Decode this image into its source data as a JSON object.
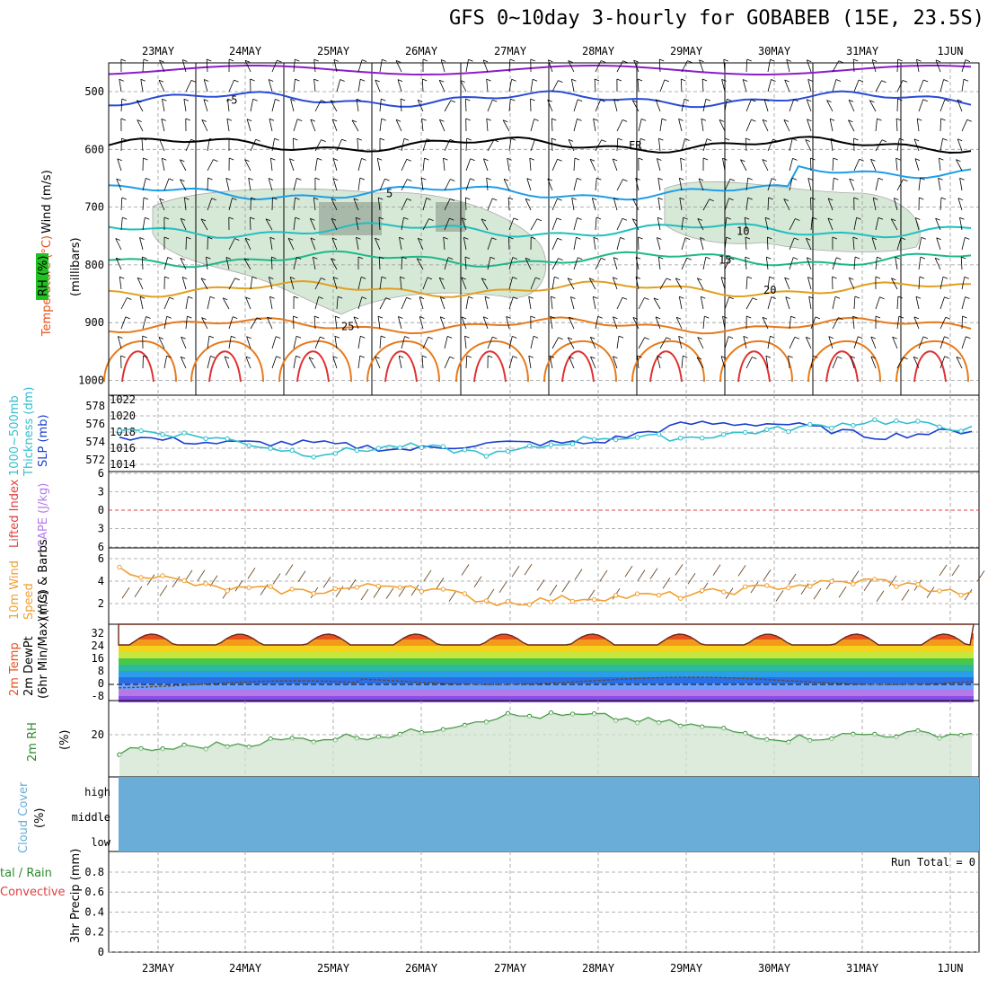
{
  "title": "GFS 0~10day 3-hourly for GOBABEB (15E, 23.5S)",
  "days": [
    "23MAY",
    "24MAY",
    "25MAY",
    "26MAY",
    "27MAY",
    "28MAY",
    "29MAY",
    "30MAY",
    "31MAY",
    "1JUN"
  ],
  "colors": {
    "temp_hot": "#e8501c",
    "temp_mid": "#f39a1c",
    "rh_fill": "#cfe3cf",
    "rh_line": "#2a8a2a",
    "slp": "#1a3fd0",
    "thickness": "#33bfcf",
    "wind10": "#f0a030",
    "cloud": "#6aadd8",
    "cold": "#b57ae8"
  },
  "labels": {
    "upper_ylabel": "(millibars)",
    "upper_wind": "Wind (m/s)",
    "upper_temp": "Temperature (°C)",
    "upper_rh": "RH (%)",
    "slp_label_a": "1000~500mb",
    "slp_label_b": "Thickness (dm)",
    "slp_label_c": "SLP (mb)",
    "li_label": "Lifted Index",
    "cape_label": "CAPE (J/kg)",
    "wind10_label_a": "10m Wind",
    "wind10_label_b": "Speed",
    "wind10_label_c": "(m/s) & Barbs",
    "temp_label_a": "2m Temp",
    "temp_label_b": "2m DewPt",
    "temp_label_c": "(6hr Min/Max) (°C)",
    "rh2_label": "2m RH",
    "rh2_unit": "(%)",
    "cloud_label": "Cloud Cover",
    "cloud_unit": "(%)",
    "precip_label_a": "tal / Rain",
    "precip_label_b": "Convective",
    "precip_label_c": "3hr Precip (mm)",
    "run_total": "Run Total = 0",
    "cloud_high": "high",
    "cloud_middle": "middle",
    "cloud_low": "low",
    "contour_fr": "FR"
  },
  "ticks": {
    "pressure": [
      "500",
      "600",
      "700",
      "800",
      "900",
      "1000"
    ],
    "slp_right": [
      "1022",
      "1020",
      "1018",
      "1016",
      "1014"
    ],
    "thick_left": [
      "578",
      "576",
      "574",
      "572"
    ],
    "li": [
      "6",
      "3",
      "0",
      "3",
      "6"
    ],
    "wind10": [
      "6",
      "4",
      "2"
    ],
    "temp2m": [
      "32",
      "24",
      "16",
      "8",
      "0",
      "-8"
    ],
    "rh2m": [
      "20"
    ],
    "precip": [
      "0.8",
      "0.6",
      "0.4",
      "0.2",
      "0"
    ]
  },
  "upper_isotherms": [
    {
      "label": "-5",
      "color": "#2a4bd7",
      "ref": 513
    },
    {
      "label": "FR",
      "color": "#000000",
      "ref": 592
    },
    {
      "label": "5",
      "color": "#1e9ee8",
      "ref": 675
    },
    {
      "label": "10",
      "color": "#21bfbf",
      "ref": 740
    },
    {
      "label": "15",
      "color": "#1fb88a",
      "ref": 790
    },
    {
      "label": "20",
      "color": "#e0a020",
      "ref": 842
    },
    {
      "label": "25",
      "color": "#e77a1c",
      "ref": 905
    }
  ],
  "chart_data": [
    {
      "type": "line",
      "name": "SLP / Thickness",
      "x": [
        "23MAY",
        "24MAY",
        "25MAY",
        "26MAY",
        "27MAY",
        "28MAY",
        "29MAY",
        "30MAY",
        "31MAY",
        "1JUN"
      ],
      "series": [
        {
          "name": "SLP (mb)",
          "values": [
            1017,
            1016,
            1016,
            1015,
            1016,
            1016,
            1019,
            1019,
            1017,
            1018
          ]
        },
        {
          "name": "1000~500mb Thickness (dm)",
          "values": [
            576,
            575,
            573,
            574,
            573,
            575,
            575,
            576,
            577,
            576
          ]
        }
      ]
    },
    {
      "type": "line",
      "name": "10m Wind Speed",
      "x": [
        "23MAY",
        "24MAY",
        "25MAY",
        "26MAY",
        "27MAY",
        "28MAY",
        "29MAY",
        "30MAY",
        "31MAY",
        "1JUN"
      ],
      "series": [
        {
          "name": "10m Wind Speed (m/s)",
          "values": [
            5.5,
            3.8,
            3.5,
            4.2,
            2.5,
            3.0,
            3.2,
            4.0,
            4.5,
            3.2
          ]
        }
      ]
    },
    {
      "type": "area",
      "name": "2m Temp",
      "x": [
        "23MAY",
        "24MAY",
        "25MAY",
        "26MAY",
        "27MAY",
        "28MAY",
        "29MAY",
        "30MAY",
        "31MAY",
        "1JUN"
      ],
      "series": [
        {
          "name": "2m Temp max (°C)",
          "values": [
            30,
            31,
            31,
            29,
            29,
            30,
            30,
            31,
            32,
            30
          ]
        },
        {
          "name": "2m Temp min (°C)",
          "values": [
            22,
            22,
            22,
            22,
            21,
            22,
            22,
            22,
            22,
            22
          ]
        },
        {
          "name": "2m DewPt (°C)",
          "values": [
            -3,
            -1,
            0,
            3,
            3,
            3,
            2,
            1,
            1,
            2
          ]
        }
      ]
    },
    {
      "type": "area",
      "name": "2m RH",
      "x": [
        "23MAY",
        "24MAY",
        "25MAY",
        "26MAY",
        "27MAY",
        "28MAY",
        "29MAY",
        "30MAY",
        "31MAY",
        "1JUN"
      ],
      "series": [
        {
          "name": "2m RH (%)",
          "values": [
            14,
            17,
            20,
            22,
            30,
            30,
            26,
            20,
            22,
            22
          ]
        }
      ]
    },
    {
      "type": "bar",
      "name": "3hr Precip",
      "x": [
        "23MAY",
        "24MAY",
        "25MAY",
        "26MAY",
        "27MAY",
        "28MAY",
        "29MAY",
        "30MAY",
        "31MAY",
        "1JUN"
      ],
      "series": [
        {
          "name": "3hr Precip (mm)",
          "values": [
            0,
            0,
            0,
            0,
            0,
            0,
            0,
            0,
            0,
            0
          ]
        }
      ],
      "ylim": [
        0,
        1
      ]
    }
  ]
}
